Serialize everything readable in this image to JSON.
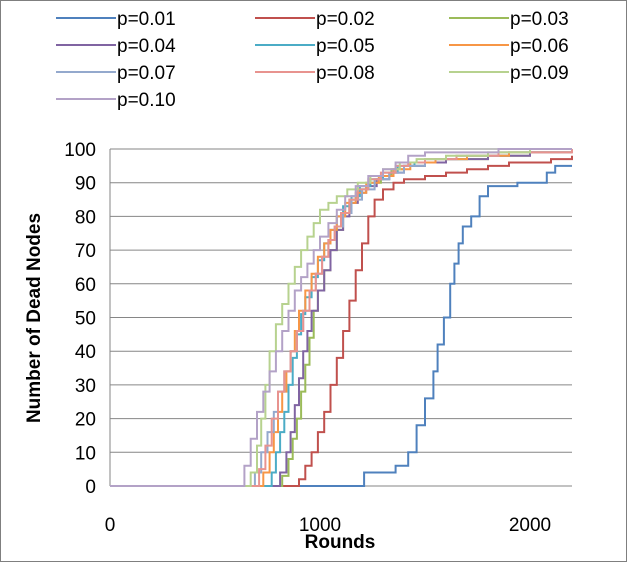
{
  "chart_data": {
    "type": "line",
    "title": "",
    "xlabel": "Rounds",
    "ylabel": "Number of Dead Nodes",
    "xlim": [
      0,
      2200
    ],
    "ylim": [
      0,
      100
    ],
    "x_ticks": [
      "0",
      "1000",
      "2000"
    ],
    "y_ticks": [
      "0",
      "10",
      "20",
      "30",
      "40",
      "50",
      "60",
      "70",
      "80",
      "90",
      "100"
    ],
    "grid": "horizontal",
    "legend_position": "top",
    "step": true,
    "series": [
      {
        "name": "p=0.01",
        "color": "#4f81bd",
        "x": [
          0,
          1180,
          1210,
          1300,
          1360,
          1420,
          1460,
          1500,
          1540,
          1560,
          1590,
          1620,
          1640,
          1660,
          1680,
          1720,
          1760,
          1800,
          1840,
          1880,
          1940,
          2040,
          2080,
          2120,
          2200
        ],
        "y": [
          0,
          0,
          4,
          4,
          6,
          10,
          18,
          26,
          34,
          42,
          50,
          60,
          66,
          72,
          77,
          80,
          86,
          89,
          89,
          89,
          90,
          90,
          93,
          95,
          95
        ]
      },
      {
        "name": "p=0.02",
        "color": "#c0504d",
        "x": [
          0,
          850,
          900,
          930,
          960,
          990,
          1020,
          1050,
          1080,
          1110,
          1140,
          1170,
          1200,
          1230,
          1260,
          1300,
          1350,
          1400,
          1500,
          1600,
          1700,
          1800,
          1900,
          2000,
          2100,
          2200
        ],
        "y": [
          0,
          0,
          2,
          6,
          10,
          16,
          22,
          30,
          38,
          46,
          55,
          64,
          72,
          80,
          85,
          88,
          90,
          91,
          92,
          93,
          94,
          95,
          96,
          96,
          97,
          98
        ]
      },
      {
        "name": "p=0.03",
        "color": "#9bbb59",
        "x": [
          0,
          780,
          820,
          850,
          870,
          890,
          910,
          930,
          950,
          970,
          990,
          1020,
          1050,
          1080,
          1110,
          1140,
          1180,
          1230,
          1290,
          1340,
          1400,
          1500,
          1600,
          1800,
          2000,
          2200
        ],
        "y": [
          0,
          0,
          3,
          8,
          14,
          20,
          28,
          36,
          44,
          52,
          58,
          64,
          70,
          76,
          81,
          85,
          88,
          90,
          92,
          94,
          95,
          96,
          97,
          98,
          99,
          99
        ]
      },
      {
        "name": "p=0.04",
        "color": "#8064a2",
        "x": [
          0,
          780,
          810,
          840,
          860,
          880,
          900,
          920,
          940,
          960,
          990,
          1020,
          1050,
          1080,
          1110,
          1140,
          1180,
          1220,
          1270,
          1330,
          1400,
          1500,
          1600,
          1800,
          2000,
          2200
        ],
        "y": [
          0,
          0,
          4,
          10,
          16,
          24,
          32,
          40,
          46,
          52,
          58,
          64,
          70,
          76,
          80,
          84,
          87,
          89,
          91,
          93,
          95,
          96,
          97,
          98,
          99,
          99
        ]
      },
      {
        "name": "p=0.05",
        "color": "#4bacc6",
        "x": [
          0,
          740,
          770,
          790,
          810,
          830,
          850,
          870,
          890,
          910,
          930,
          960,
          990,
          1020,
          1050,
          1080,
          1110,
          1150,
          1190,
          1240,
          1300,
          1370,
          1450,
          1550,
          1700,
          1900,
          2200
        ],
        "y": [
          0,
          0,
          4,
          10,
          16,
          22,
          30,
          38,
          45,
          51,
          56,
          62,
          67,
          72,
          76,
          80,
          83,
          86,
          89,
          91,
          93,
          95,
          96,
          97,
          98,
          99,
          99
        ]
      },
      {
        "name": "p=0.06",
        "color": "#f79646",
        "x": [
          0,
          700,
          730,
          760,
          780,
          800,
          820,
          840,
          860,
          880,
          900,
          930,
          960,
          990,
          1020,
          1050,
          1080,
          1120,
          1170,
          1220,
          1280,
          1350,
          1430,
          1550,
          1700,
          1900,
          2200
        ],
        "y": [
          0,
          0,
          4,
          10,
          16,
          22,
          28,
          34,
          40,
          46,
          52,
          58,
          63,
          68,
          72,
          76,
          80,
          84,
          87,
          90,
          92,
          94,
          96,
          97,
          98,
          99,
          99
        ]
      },
      {
        "name": "p=0.07",
        "color": "#94a9cd",
        "x": [
          0,
          660,
          690,
          720,
          750,
          780,
          800,
          830,
          860,
          890,
          920,
          950,
          980,
          1010,
          1040,
          1070,
          1110,
          1150,
          1200,
          1260,
          1330,
          1400,
          1500,
          1650,
          1850,
          2200
        ],
        "y": [
          0,
          0,
          4,
          10,
          16,
          22,
          28,
          34,
          40,
          46,
          52,
          58,
          63,
          68,
          73,
          77,
          81,
          85,
          88,
          91,
          93,
          95,
          97,
          98,
          99,
          99
        ]
      },
      {
        "name": "p=0.08",
        "color": "#e8938f",
        "x": [
          0,
          680,
          710,
          740,
          770,
          800,
          830,
          860,
          890,
          920,
          950,
          980,
          1010,
          1040,
          1070,
          1100,
          1140,
          1180,
          1230,
          1290,
          1360,
          1420,
          1500,
          1650,
          1850,
          2200
        ],
        "y": [
          0,
          0,
          5,
          12,
          20,
          28,
          34,
          40,
          46,
          52,
          58,
          63,
          68,
          73,
          77,
          81,
          85,
          88,
          91,
          93,
          95,
          96,
          97,
          98,
          99,
          100
        ]
      },
      {
        "name": "p=0.09",
        "color": "#b7d28f",
        "x": [
          0,
          640,
          670,
          700,
          720,
          740,
          760,
          790,
          820,
          850,
          880,
          910,
          940,
          970,
          1000,
          1040,
          1080,
          1130,
          1180,
          1240,
          1300,
          1380,
          1460,
          1600,
          1800,
          2000,
          2200
        ],
        "y": [
          0,
          0,
          4,
          12,
          20,
          30,
          40,
          48,
          54,
          60,
          65,
          70,
          74,
          78,
          82,
          84,
          86,
          88,
          90,
          92,
          94,
          96,
          97,
          98,
          99,
          100,
          100
        ]
      },
      {
        "name": "p=0.10",
        "color": "#b3a2c7",
        "x": [
          0,
          610,
          640,
          670,
          700,
          730,
          760,
          790,
          820,
          850,
          880,
          910,
          940,
          970,
          1000,
          1040,
          1080,
          1120,
          1170,
          1230,
          1300,
          1360,
          1420,
          1500,
          1650,
          1850,
          2200
        ],
        "y": [
          0,
          0,
          6,
          14,
          22,
          28,
          34,
          40,
          46,
          52,
          58,
          62,
          66,
          70,
          74,
          78,
          82,
          86,
          89,
          92,
          94,
          96,
          98,
          99,
          99,
          100,
          100
        ]
      }
    ]
  }
}
